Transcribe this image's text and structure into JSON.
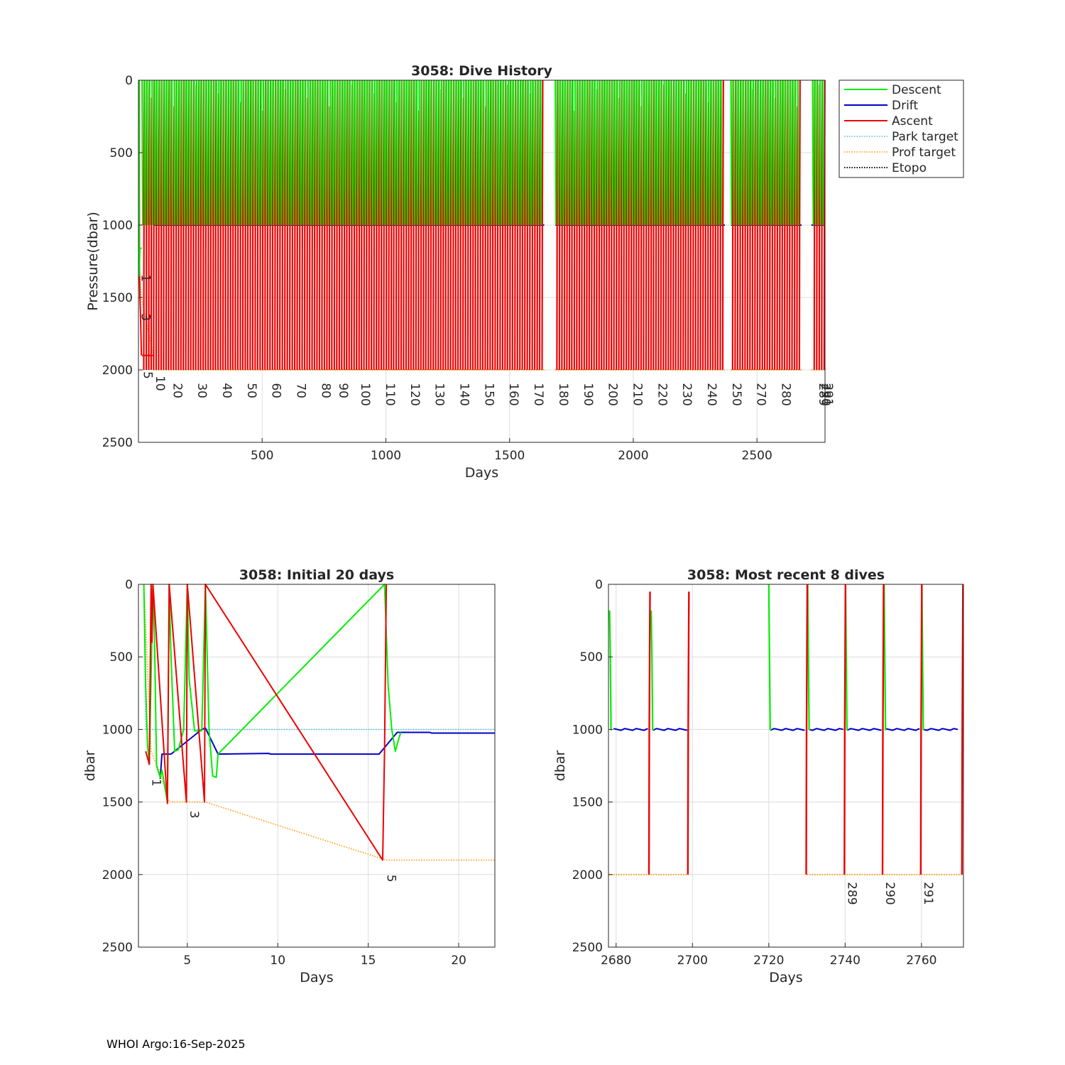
{
  "figure": {
    "footer": "WHOI Argo:16-Sep-2025"
  },
  "colors": {
    "descent": "#00ee00",
    "drift": "#0000cc",
    "ascent": "#ee0000",
    "park_target": "#4dbeee",
    "prof_target": "#ff9900",
    "etopo": "#000000",
    "grid": "#dcdcdc",
    "axis": "#262626"
  },
  "chart_data": [
    {
      "id": "dive-history",
      "type": "line",
      "title": "3058: Dive History",
      "xlabel": "Days",
      "ylabel": "Pressure(dbar)",
      "xlim": [
        0,
        2775
      ],
      "ylim": [
        0,
        2500
      ],
      "y_reversed": true,
      "xticks": [
        500,
        1000,
        1500,
        2000,
        2500
      ],
      "yticks": [
        0,
        500,
        1000,
        1500,
        2000,
        2500
      ],
      "legend": {
        "placement": "outside-right",
        "entries": [
          {
            "key": "descent",
            "label": "Descent",
            "style": "solid"
          },
          {
            "key": "drift",
            "label": "Drift",
            "style": "solid"
          },
          {
            "key": "ascent",
            "label": "Ascent",
            "style": "solid"
          },
          {
            "key": "park_target",
            "label": "Park target",
            "style": "dotted"
          },
          {
            "key": "prof_target",
            "label": "Prof target",
            "style": "dotted"
          },
          {
            "key": "etopo",
            "label": "Etopo",
            "style": "dotted"
          }
        ]
      },
      "park_pressure": 1000,
      "profile_pressure": 2000,
      "gaps": [
        [
          1640,
          1685
        ],
        [
          2370,
          2395
        ],
        [
          2680,
          2720
        ]
      ],
      "dive_labels": [
        {
          "label": "1",
          "day": 2,
          "pressure": 1330
        },
        {
          "label": "3",
          "day": 2,
          "pressure": 1600
        },
        {
          "label": "5",
          "day": 10,
          "pressure": 2000
        },
        {
          "label": "10",
          "day": 60,
          "pressure": 2030
        },
        {
          "label": "20",
          "day": 130,
          "pressure": 2080
        },
        {
          "label": "30",
          "day": 230,
          "pressure": 2080
        },
        {
          "label": "40",
          "day": 330,
          "pressure": 2080
        },
        {
          "label": "50",
          "day": 430,
          "pressure": 2080
        },
        {
          "label": "60",
          "day": 530,
          "pressure": 2080
        },
        {
          "label": "70",
          "day": 630,
          "pressure": 2080
        },
        {
          "label": "80",
          "day": 730,
          "pressure": 2080
        },
        {
          "label": "90",
          "day": 800,
          "pressure": 2080
        },
        {
          "label": "100",
          "day": 890,
          "pressure": 2080
        },
        {
          "label": "110",
          "day": 990,
          "pressure": 2080
        },
        {
          "label": "120",
          "day": 1090,
          "pressure": 2080
        },
        {
          "label": "130",
          "day": 1190,
          "pressure": 2080
        },
        {
          "label": "140",
          "day": 1290,
          "pressure": 2080
        },
        {
          "label": "150",
          "day": 1390,
          "pressure": 2080
        },
        {
          "label": "160",
          "day": 1490,
          "pressure": 2080
        },
        {
          "label": "170",
          "day": 1590,
          "pressure": 2080
        },
        {
          "label": "180",
          "day": 1690,
          "pressure": 2080
        },
        {
          "label": "190",
          "day": 1790,
          "pressure": 2080
        },
        {
          "label": "200",
          "day": 1890,
          "pressure": 2080
        },
        {
          "label": "210",
          "day": 1990,
          "pressure": 2080
        },
        {
          "label": "220",
          "day": 2090,
          "pressure": 2080
        },
        {
          "label": "230",
          "day": 2190,
          "pressure": 2080
        },
        {
          "label": "240",
          "day": 2290,
          "pressure": 2080
        },
        {
          "label": "250",
          "day": 2390,
          "pressure": 2080
        },
        {
          "label": "270",
          "day": 2490,
          "pressure": 2080
        },
        {
          "label": "280",
          "day": 2590,
          "pressure": 2080
        },
        {
          "label": "289",
          "day": 2740,
          "pressure": 2080
        },
        {
          "label": "290",
          "day": 2750,
          "pressure": 2080
        },
        {
          "label": "291",
          "day": 2760,
          "pressure": 2080
        }
      ]
    },
    {
      "id": "initial-20-days",
      "type": "line",
      "title": "3058: Initial 20 days",
      "xlabel": "Days",
      "ylabel": "dbar",
      "xlim": [
        2.3,
        22
      ],
      "ylim": [
        0,
        2500
      ],
      "y_reversed": true,
      "xticks": [
        5,
        10,
        15,
        20
      ],
      "yticks": [
        0,
        500,
        1000,
        1500,
        2000,
        2500
      ],
      "series": [
        {
          "key": "park_target",
          "style": "dotted",
          "points": [
            [
              2.6,
              0
            ],
            [
              2.7,
              1000
            ],
            [
              22,
              1000
            ]
          ]
        },
        {
          "key": "prof_target",
          "style": "dotted",
          "points": [
            [
              2.6,
              0
            ],
            [
              3.0,
              1150
            ],
            [
              3.5,
              1300
            ],
            [
              4.0,
              1500
            ],
            [
              6.0,
              1500
            ],
            [
              16.0,
              1900
            ],
            [
              22,
              1900
            ]
          ]
        },
        {
          "key": "descent",
          "style": "solid",
          "points": [
            [
              2.6,
              0
            ],
            [
              2.7,
              700
            ],
            [
              2.8,
              1100
            ],
            [
              2.9,
              1240
            ],
            [
              3.1,
              0
            ],
            [
              3.2,
              450
            ],
            [
              3.3,
              1250
            ],
            [
              3.5,
              1330
            ],
            [
              3.6,
              1280
            ],
            [
              3.9,
              1500
            ],
            [
              4.0,
              0
            ],
            [
              4.1,
              500
            ],
            [
              4.3,
              1150
            ],
            [
              4.5,
              1140
            ],
            [
              4.8,
              1000
            ],
            [
              5.0,
              0
            ],
            [
              5.1,
              650
            ],
            [
              5.4,
              1010
            ],
            [
              5.8,
              1010
            ],
            [
              6.0,
              0
            ],
            [
              6.2,
              1000
            ],
            [
              6.4,
              1320
            ],
            [
              6.6,
              1330
            ],
            [
              6.7,
              1170
            ],
            [
              15.9,
              0
            ],
            [
              16.1,
              700
            ],
            [
              16.3,
              1000
            ],
            [
              16.5,
              1150
            ],
            [
              16.7,
              1060
            ],
            [
              16.8,
              1020
            ]
          ]
        },
        {
          "key": "drift",
          "style": "solid",
          "points": [
            [
              3.5,
              1340
            ],
            [
              3.6,
              1170
            ],
            [
              4.1,
              1170
            ],
            [
              5.8,
              1000
            ],
            [
              6.0,
              990
            ],
            [
              6.7,
              1170
            ],
            [
              9.5,
              1165
            ],
            [
              9.6,
              1170
            ],
            [
              15.6,
              1170
            ],
            [
              16.6,
              1020
            ],
            [
              18.4,
              1020
            ],
            [
              18.5,
              1025
            ],
            [
              22,
              1025
            ]
          ]
        },
        {
          "key": "ascent",
          "style": "solid",
          "points": [
            [
              2.7,
              1150
            ],
            [
              2.9,
              1240
            ],
            [
              3.0,
              0
            ],
            [
              3.05,
              400
            ],
            [
              3.1,
              0
            ],
            [
              3.9,
              1510
            ],
            [
              4.0,
              0
            ],
            [
              4.95,
              1500
            ],
            [
              5.0,
              0
            ],
            [
              5.95,
              1500
            ],
            [
              6.0,
              0
            ],
            [
              15.8,
              1900
            ],
            [
              15.9,
              1150
            ],
            [
              16.0,
              0
            ]
          ]
        }
      ],
      "dive_labels": [
        {
          "label": "1",
          "day": 2.9,
          "pressure": 1340
        },
        {
          "label": "3",
          "day": 5.0,
          "pressure": 1560
        },
        {
          "label": "5",
          "day": 15.9,
          "pressure": 2000
        }
      ]
    },
    {
      "id": "recent-8-dives",
      "type": "line",
      "title": "3058: Most recent 8 dives",
      "xlabel": "Days",
      "ylabel": "dbar",
      "xlim": [
        2678,
        2771
      ],
      "ylim": [
        0,
        2500
      ],
      "y_reversed": true,
      "xticks": [
        2680,
        2700,
        2720,
        2740,
        2760
      ],
      "yticks": [
        0,
        500,
        1000,
        1500,
        2000,
        2500
      ],
      "park_pressure": 1000,
      "profile_pressure": 2000,
      "dive_days": [
        2679,
        2689,
        2699,
        2720,
        2730,
        2740,
        2750,
        2760,
        2770.5
      ],
      "prof_target_segments": [
        [
          2678,
          2699
        ],
        [
          2730,
          2771
        ]
      ],
      "dive_labels": [
        {
          "label": "289",
          "day": 2740,
          "pressure": 2080
        },
        {
          "label": "290",
          "day": 2750,
          "pressure": 2080
        },
        {
          "label": "291",
          "day": 2760,
          "pressure": 2080
        }
      ]
    }
  ]
}
